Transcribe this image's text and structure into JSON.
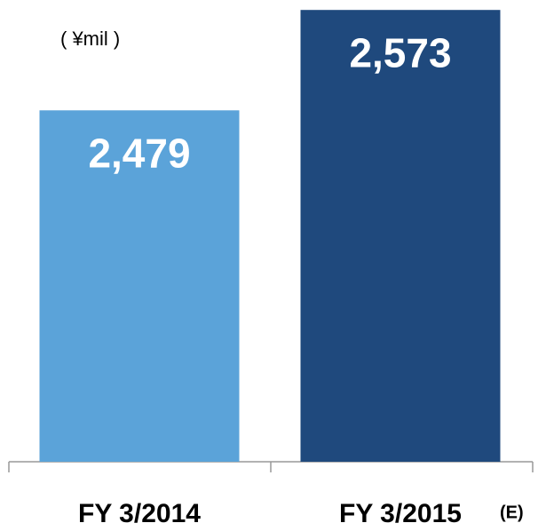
{
  "chart_data": {
    "type": "bar",
    "unit_label": "( ¥mil )",
    "categories": [
      "FY 3/2014",
      "FY 3/2015"
    ],
    "annotation": "(E)",
    "values": [
      2479,
      2573
    ],
    "value_labels": [
      "2,479",
      "2,573"
    ],
    "colors": [
      "#5ba3d9",
      "#1f497d"
    ],
    "ylim": [
      2150,
      2574
    ]
  }
}
